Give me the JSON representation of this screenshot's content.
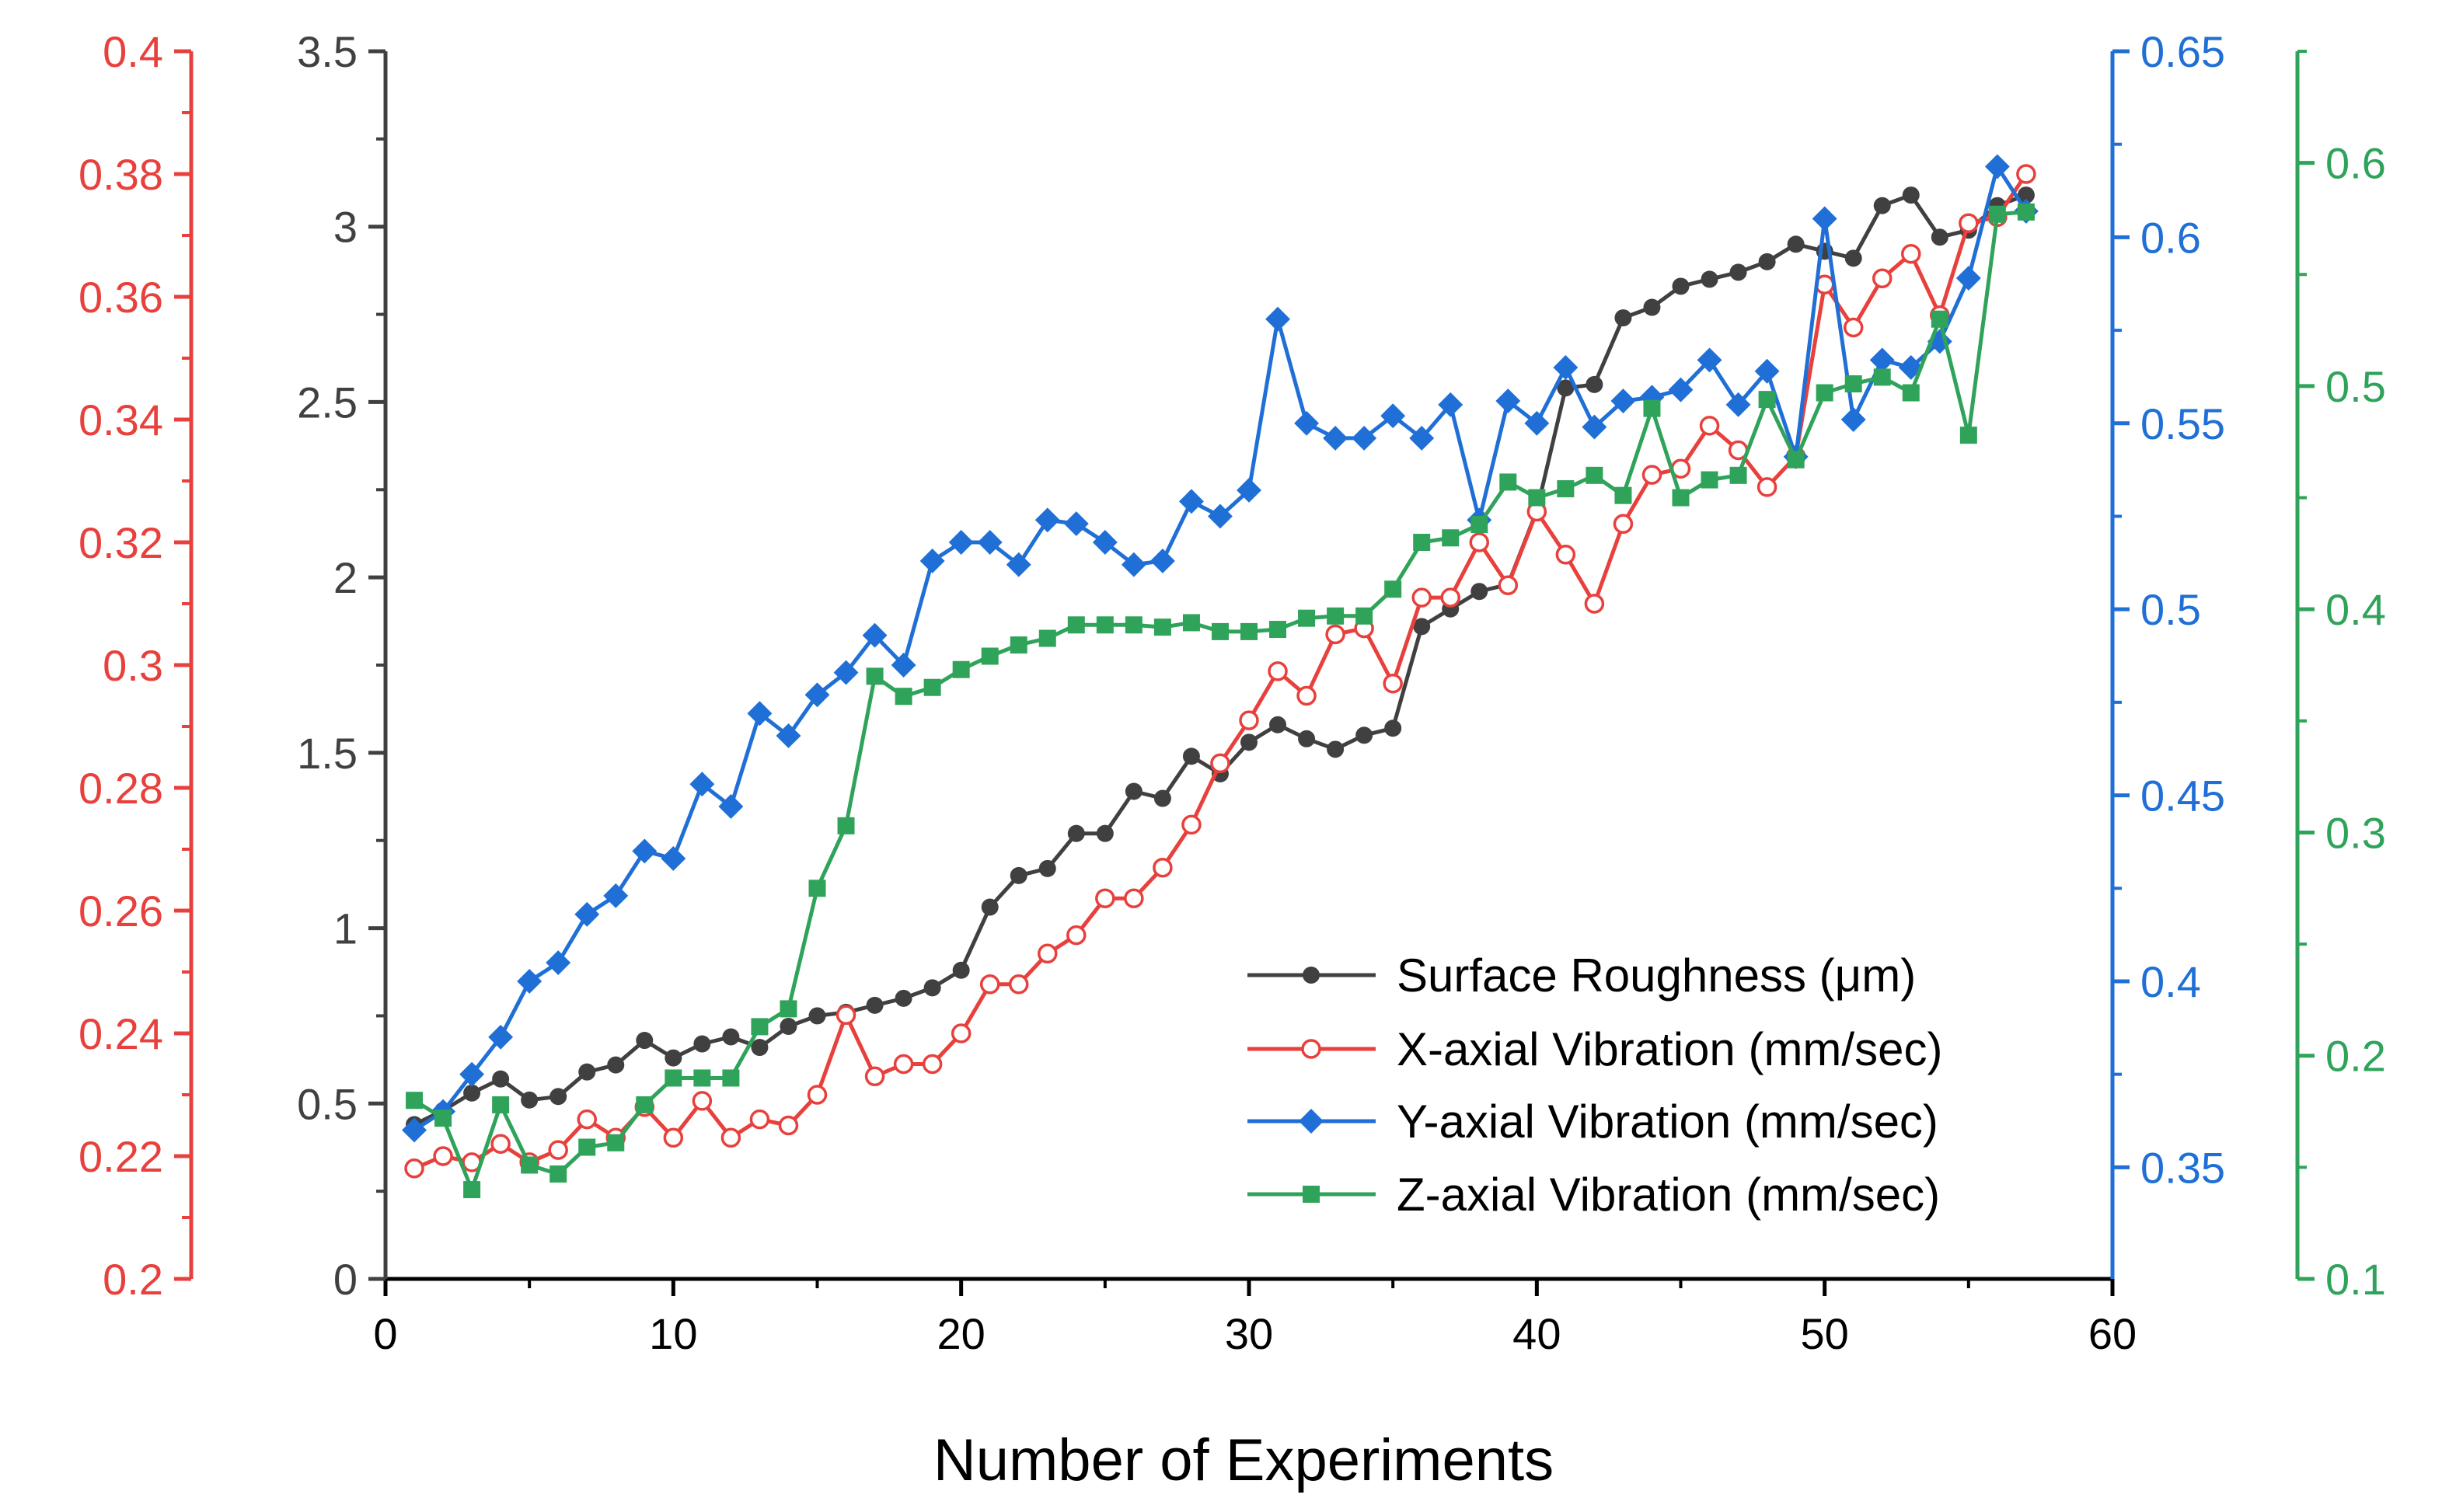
{
  "chart_data": {
    "type": "line",
    "title": "",
    "xlabel": "Number of Experiments",
    "xlim": [
      0,
      60
    ],
    "x_ticks": [
      "0",
      "10",
      "20",
      "30",
      "40",
      "50",
      "60"
    ],
    "grid": false,
    "legend_position": "bottom-right",
    "axes": {
      "roughness": {
        "side": "left-inner",
        "color": "#404040",
        "ylim": [
          0,
          3.5
        ],
        "ticks": [
          "0",
          "0.5",
          "1",
          "1.5",
          "2",
          "2.5",
          "3",
          "3.5"
        ]
      },
      "x_vib": {
        "side": "left-outer",
        "color": "#e8403c",
        "ylim": [
          0.2,
          0.4
        ],
        "ticks": [
          "0.2",
          "0.22",
          "0.24",
          "0.26",
          "0.28",
          "0.3",
          "0.32",
          "0.34",
          "0.36",
          "0.38",
          "0.4"
        ]
      },
      "y_vib": {
        "side": "right-inner",
        "color": "#1f6fd6",
        "ylim": [
          0.32,
          0.65
        ],
        "ticks": [
          "0.35",
          "0.4",
          "0.45",
          "0.5",
          "0.55",
          "0.6",
          "0.65"
        ]
      },
      "z_vib": {
        "side": "right-outer",
        "color": "#2fa35a",
        "ylim": [
          0.1,
          0.65
        ],
        "ticks": [
          "0.1",
          "0.2",
          "0.3",
          "0.4",
          "0.5",
          "0.6"
        ]
      }
    },
    "series": [
      {
        "name": "Surface Roughness (μm)",
        "axis": "roughness",
        "color": "#404040",
        "marker": "circle-filled",
        "x": [
          1,
          2,
          3,
          4,
          5,
          6,
          7,
          8,
          9,
          10,
          11,
          12,
          13,
          14,
          15,
          16,
          17,
          18,
          19,
          20,
          21,
          22,
          23,
          24,
          25,
          26,
          27,
          28,
          29,
          30,
          31,
          32,
          33,
          34,
          35,
          36,
          37,
          38,
          39,
          40,
          41,
          42,
          43,
          44,
          45,
          46,
          47,
          48,
          49,
          50,
          51,
          52,
          53,
          54,
          55,
          56,
          57
        ],
        "y": [
          0.44,
          0.48,
          0.53,
          0.57,
          0.51,
          0.52,
          0.59,
          0.61,
          0.68,
          0.63,
          0.67,
          0.69,
          0.66,
          0.72,
          0.75,
          0.76,
          0.78,
          0.8,
          0.83,
          0.88,
          1.06,
          1.15,
          1.17,
          1.27,
          1.27,
          1.39,
          1.37,
          1.49,
          1.44,
          1.53,
          1.58,
          1.54,
          1.51,
          1.55,
          1.57,
          1.86,
          1.91,
          1.96,
          1.98,
          2.19,
          2.54,
          2.55,
          2.74,
          2.77,
          2.83,
          2.85,
          2.87,
          2.9,
          2.95,
          2.93,
          2.91,
          3.06,
          3.09,
          2.97,
          2.99,
          3.06,
          3.09
        ]
      },
      {
        "name": "X-axial Vibration (mm/sec)",
        "axis": "x_vib",
        "color": "#e8403c",
        "marker": "circle-open",
        "x": [
          1,
          2,
          3,
          4,
          5,
          6,
          7,
          8,
          9,
          10,
          11,
          12,
          13,
          14,
          15,
          16,
          17,
          18,
          19,
          20,
          21,
          22,
          23,
          24,
          25,
          26,
          27,
          28,
          29,
          30,
          31,
          32,
          33,
          34,
          35,
          36,
          37,
          38,
          39,
          40,
          41,
          42,
          43,
          44,
          45,
          46,
          47,
          48,
          49,
          50,
          51,
          52,
          53,
          54,
          55,
          56,
          57
        ],
        "y": [
          0.218,
          0.22,
          0.219,
          0.222,
          0.219,
          0.221,
          0.226,
          0.223,
          0.228,
          0.223,
          0.229,
          0.223,
          0.226,
          0.225,
          0.23,
          0.243,
          0.233,
          0.235,
          0.235,
          0.24,
          0.248,
          0.248,
          0.253,
          0.256,
          0.262,
          0.262,
          0.267,
          0.274,
          0.284,
          0.291,
          0.299,
          0.295,
          0.305,
          0.306,
          0.297,
          0.311,
          0.311,
          0.32,
          0.313,
          0.325,
          0.318,
          0.31,
          0.323,
          0.331,
          0.332,
          0.339,
          0.335,
          0.329,
          0.334,
          0.362,
          0.355,
          0.363,
          0.367,
          0.357,
          0.372,
          0.373,
          0.38
        ]
      },
      {
        "name": "Y-axial Vibration (mm/sec)",
        "axis": "y_vib",
        "color": "#1f6fd6",
        "marker": "diamond-filled",
        "x": [
          1,
          2,
          3,
          4,
          5,
          6,
          7,
          8,
          9,
          10,
          11,
          12,
          13,
          14,
          15,
          16,
          17,
          18,
          19,
          20,
          21,
          22,
          23,
          24,
          25,
          26,
          27,
          28,
          29,
          30,
          31,
          32,
          33,
          34,
          35,
          36,
          37,
          38,
          39,
          40,
          41,
          42,
          43,
          44,
          45,
          46,
          47,
          48,
          49,
          50,
          51,
          52,
          53,
          54,
          55,
          56,
          57
        ],
        "y": [
          0.36,
          0.365,
          0.375,
          0.385,
          0.4,
          0.405,
          0.418,
          0.423,
          0.435,
          0.433,
          0.453,
          0.447,
          0.472,
          0.466,
          0.477,
          0.483,
          0.493,
          0.485,
          0.513,
          0.518,
          0.518,
          0.512,
          0.524,
          0.523,
          0.518,
          0.512,
          0.513,
          0.529,
          0.525,
          0.532,
          0.578,
          0.55,
          0.546,
          0.546,
          0.552,
          0.546,
          0.555,
          0.524,
          0.556,
          0.55,
          0.565,
          0.549,
          0.556,
          0.557,
          0.559,
          0.567,
          0.555,
          0.564,
          0.541,
          0.605,
          0.551,
          0.567,
          0.565,
          0.572,
          0.589,
          0.619,
          0.607
        ]
      },
      {
        "name": "Z-axial Vibration (mm/sec)",
        "axis": "z_vib",
        "color": "#2fa35a",
        "marker": "square-filled",
        "x": [
          1,
          2,
          3,
          4,
          5,
          6,
          7,
          8,
          9,
          10,
          11,
          12,
          13,
          14,
          15,
          16,
          17,
          18,
          19,
          20,
          21,
          22,
          23,
          24,
          25,
          26,
          27,
          28,
          29,
          30,
          31,
          32,
          33,
          34,
          35,
          36,
          37,
          38,
          39,
          40,
          41,
          42,
          43,
          44,
          45,
          46,
          47,
          48,
          49,
          50,
          51,
          52,
          53,
          54,
          55,
          56,
          57
        ],
        "y": [
          0.18,
          0.172,
          0.14,
          0.178,
          0.151,
          0.147,
          0.159,
          0.161,
          0.178,
          0.19,
          0.19,
          0.19,
          0.213,
          0.221,
          0.275,
          0.303,
          0.37,
          0.361,
          0.365,
          0.373,
          0.379,
          0.384,
          0.387,
          0.393,
          0.393,
          0.393,
          0.392,
          0.394,
          0.39,
          0.39,
          0.391,
          0.396,
          0.397,
          0.397,
          0.409,
          0.43,
          0.432,
          0.438,
          0.457,
          0.45,
          0.454,
          0.46,
          0.451,
          0.49,
          0.45,
          0.458,
          0.46,
          0.494,
          0.467,
          0.497,
          0.501,
          0.504,
          0.497,
          0.53,
          0.478,
          0.577,
          0.578
        ]
      }
    ]
  }
}
